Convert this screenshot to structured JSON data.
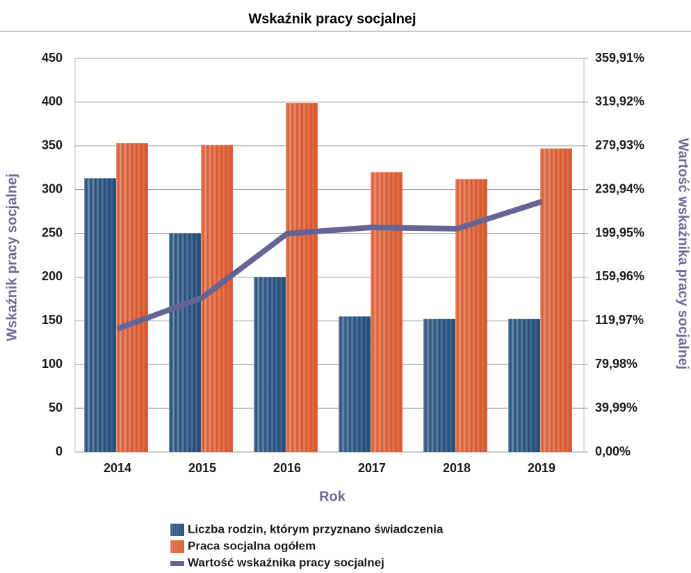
{
  "chart_data": {
    "type": "bar",
    "title": "Wskaźnik pracy socjalnej",
    "x_label": "Rok",
    "y_label": "Wskaźnik pracy socjalnej",
    "y2_label": "Wartość wskaźnika pracy socjalnej",
    "categories": [
      "2014",
      "2015",
      "2016",
      "2017",
      "2018",
      "2019"
    ],
    "series": [
      {
        "name": "Liczba rodzin, którym przyznano świadczenia",
        "type": "bar",
        "color": "#1f4a78",
        "values": [
          313,
          250,
          200,
          155,
          152,
          152
        ]
      },
      {
        "name": "Praca socjalna ogółem",
        "type": "bar",
        "color": "#d9562a",
        "values": [
          353,
          351,
          399,
          320,
          312,
          347
        ]
      },
      {
        "name": "Wartość wskaźnika pracy socjalnej",
        "type": "line",
        "axis": "y2",
        "color": "#646496",
        "values": [
          112.6,
          141.2,
          199.7,
          205.4,
          204.1,
          228.9
        ]
      }
    ],
    "ylim": [
      0,
      450
    ],
    "yticks": [
      0,
      50,
      100,
      150,
      200,
      250,
      300,
      350,
      400,
      450
    ],
    "y2lim": [
      0,
      359.91
    ],
    "y2ticks": [
      {
        "value": 0,
        "label": "0,00%"
      },
      {
        "value": 39.99,
        "label": "39,99%"
      },
      {
        "value": 79.98,
        "label": "79,98%"
      },
      {
        "value": 119.97,
        "label": "119,97%"
      },
      {
        "value": 159.96,
        "label": "159,96%"
      },
      {
        "value": 199.95,
        "label": "199,95%"
      },
      {
        "value": 239.94,
        "label": "239,94%"
      },
      {
        "value": 279.93,
        "label": "279,93%"
      },
      {
        "value": 319.92,
        "label": "319,92%"
      },
      {
        "value": 359.91,
        "label": "359,91%"
      }
    ],
    "grid": true
  }
}
